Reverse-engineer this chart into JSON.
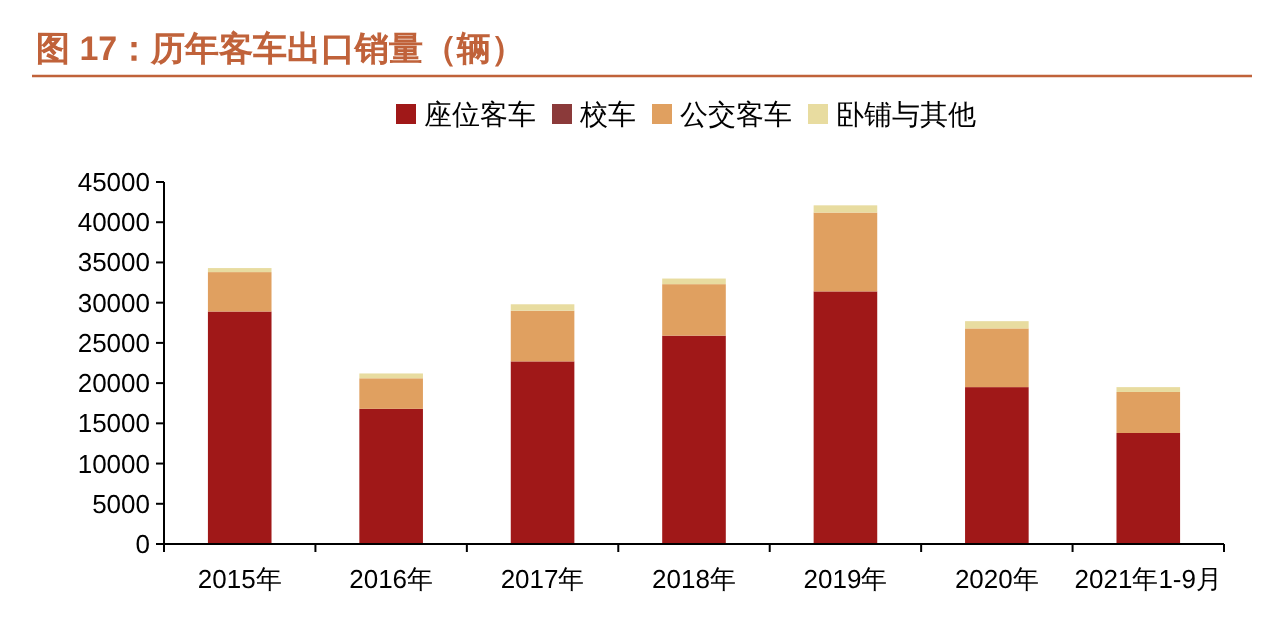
{
  "chart_data": {
    "type": "bar",
    "stacked": true,
    "title": "图 17：历年客车出口销量（辆）",
    "legend": "top",
    "categories": [
      "2015年",
      "2016年",
      "2017年",
      "2018年",
      "2019年",
      "2020年",
      "2021年1-9月"
    ],
    "series": [
      {
        "name": "座位客车",
        "color": "#a01818",
        "values": [
          28900,
          16800,
          22700,
          25900,
          31400,
          19500,
          13800
        ]
      },
      {
        "name": "校车",
        "color": "#8b3a3a",
        "values": [
          0,
          0,
          0,
          0,
          0,
          0,
          0
        ]
      },
      {
        "name": "公交客车",
        "color": "#e0a060",
        "values": [
          4900,
          3800,
          6300,
          6400,
          9800,
          7300,
          5100
        ]
      },
      {
        "name": "卧铺与其他",
        "color": "#e8dca0",
        "values": [
          500,
          600,
          800,
          700,
          900,
          900,
          600
        ]
      }
    ],
    "ylim": [
      0,
      45000
    ],
    "yticks": [
      0,
      5000,
      10000,
      15000,
      20000,
      25000,
      30000,
      35000,
      40000,
      45000
    ],
    "grid": false
  }
}
